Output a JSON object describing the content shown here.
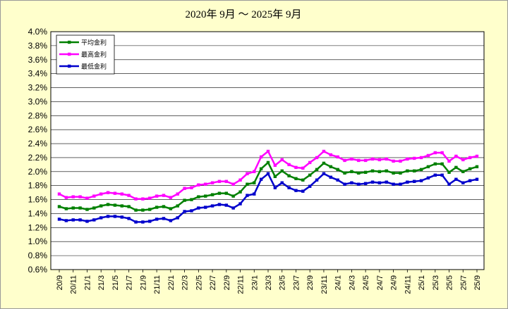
{
  "chart_data": {
    "type": "line",
    "title": "2020年 9月 ～ 2025年 9月",
    "ylim": [
      0.006,
      0.04
    ],
    "yticks": [
      "4.0%",
      "3.8%",
      "3.6%",
      "3.4%",
      "3.2%",
      "3.0%",
      "2.8%",
      "2.6%",
      "2.4%",
      "2.2%",
      "2.0%",
      "1.8%",
      "1.6%",
      "1.4%",
      "1.2%",
      "1.0%",
      "0.8%",
      "0.6%"
    ],
    "xtick_labels": [
      "20/9",
      "20/11",
      "21/1",
      "21/3",
      "21/5",
      "21/7",
      "21/9",
      "21/11",
      "22/1",
      "22/3",
      "22/5",
      "22/7",
      "22/9",
      "22/11",
      "23/1",
      "23/3",
      "23/5",
      "23/7",
      "23/9",
      "23/11",
      "24/1",
      "24/3",
      "24/5",
      "24/7",
      "24/9",
      "24/11",
      "25/1",
      "25/3",
      "25/5",
      "25/7",
      "25/9"
    ],
    "grid": true,
    "legend_position": "top-left",
    "series": [
      {
        "name": "平均金利",
        "color": "#008000",
        "values": [
          0.015,
          0.0147,
          0.0148,
          0.0148,
          0.0146,
          0.0148,
          0.0151,
          0.0153,
          0.0152,
          0.0151,
          0.015,
          0.0145,
          0.0145,
          0.0146,
          0.0149,
          0.015,
          0.0147,
          0.0151,
          0.0159,
          0.016,
          0.0164,
          0.0165,
          0.0167,
          0.0169,
          0.0169,
          0.0165,
          0.0171,
          0.0182,
          0.0184,
          0.0204,
          0.0213,
          0.0193,
          0.0201,
          0.0194,
          0.019,
          0.0188,
          0.0195,
          0.0203,
          0.0212,
          0.0207,
          0.0203,
          0.0198,
          0.02,
          0.0198,
          0.0199,
          0.0201,
          0.02,
          0.0201,
          0.0198,
          0.0198,
          0.0201,
          0.0201,
          0.0203,
          0.0207,
          0.0211,
          0.0211,
          0.0199,
          0.0206,
          0.02,
          0.0204,
          0.0207
        ]
      },
      {
        "name": "最高金利",
        "color": "#ff00ff",
        "values": [
          0.0168,
          0.0163,
          0.0164,
          0.0164,
          0.0162,
          0.0165,
          0.0168,
          0.017,
          0.0169,
          0.0168,
          0.0166,
          0.0161,
          0.0161,
          0.0162,
          0.0165,
          0.0166,
          0.0163,
          0.0168,
          0.0176,
          0.0177,
          0.0181,
          0.0182,
          0.0184,
          0.0186,
          0.0186,
          0.0182,
          0.0188,
          0.0197,
          0.02,
          0.0221,
          0.0229,
          0.0209,
          0.0217,
          0.021,
          0.0206,
          0.0205,
          0.0213,
          0.022,
          0.0229,
          0.0224,
          0.0221,
          0.0216,
          0.0218,
          0.0216,
          0.0216,
          0.0218,
          0.0217,
          0.0218,
          0.0215,
          0.0215,
          0.0218,
          0.0219,
          0.022,
          0.0223,
          0.0227,
          0.0227,
          0.0215,
          0.0222,
          0.0217,
          0.022,
          0.0222
        ]
      },
      {
        "name": "最低金利",
        "color": "#0000cc",
        "values": [
          0.0132,
          0.013,
          0.0131,
          0.0131,
          0.0129,
          0.0131,
          0.0134,
          0.0136,
          0.0136,
          0.0135,
          0.0133,
          0.0128,
          0.0128,
          0.0129,
          0.0132,
          0.0133,
          0.013,
          0.0134,
          0.0143,
          0.0144,
          0.0148,
          0.0149,
          0.0151,
          0.0153,
          0.0152,
          0.0148,
          0.0154,
          0.0166,
          0.0168,
          0.0189,
          0.0197,
          0.0177,
          0.0184,
          0.0177,
          0.0173,
          0.0172,
          0.0179,
          0.0188,
          0.0197,
          0.0192,
          0.0188,
          0.0182,
          0.0184,
          0.0182,
          0.0183,
          0.0185,
          0.0184,
          0.0185,
          0.0182,
          0.0182,
          0.0185,
          0.0186,
          0.0187,
          0.0191,
          0.0195,
          0.0195,
          0.0182,
          0.0189,
          0.0184,
          0.0187,
          0.0189
        ]
      }
    ]
  }
}
